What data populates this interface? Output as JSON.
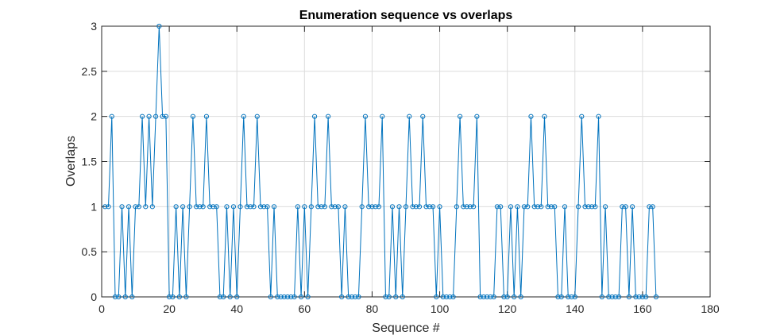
{
  "chart_data": {
    "type": "line",
    "title": "Enumeration sequence vs overlaps",
    "xlabel": "Sequence #",
    "ylabel": "Overlaps",
    "xlim": [
      0,
      180
    ],
    "ylim": [
      0,
      3
    ],
    "xticks": [
      0,
      20,
      40,
      60,
      80,
      100,
      120,
      140,
      160,
      180
    ],
    "yticks": [
      0,
      0.5,
      1,
      1.5,
      2,
      2.5,
      3
    ],
    "xtick_labels": [
      "0",
      "20",
      "40",
      "60",
      "80",
      "100",
      "120",
      "140",
      "160",
      "180"
    ],
    "ytick_labels": [
      "0",
      "0.5",
      "1",
      "1.5",
      "2",
      "2.5",
      "3"
    ],
    "grid": true,
    "marker": "circle",
    "color": "#0072BD",
    "series": [
      {
        "x": [
          1,
          2,
          3,
          4,
          5,
          6,
          7,
          8,
          9,
          10,
          11,
          12,
          13,
          14,
          15,
          16,
          17,
          18,
          19,
          20,
          21,
          22,
          23,
          24,
          25,
          26,
          27,
          28,
          29,
          30,
          31,
          32,
          33,
          34,
          35,
          36,
          37,
          38,
          39,
          40,
          41,
          42,
          43,
          44,
          45,
          46,
          47,
          48,
          49,
          50,
          51,
          52,
          53,
          54,
          55,
          56,
          57,
          58,
          59,
          60,
          61,
          62,
          63,
          64,
          65,
          66,
          67,
          68,
          69,
          70,
          71,
          72,
          73,
          74,
          75,
          76,
          77,
          78,
          79,
          80,
          81,
          82,
          83,
          84,
          85,
          86,
          87,
          88,
          89,
          90,
          91,
          92,
          93,
          94,
          95,
          96,
          97,
          98,
          99,
          100,
          101,
          102,
          103,
          104,
          105,
          106,
          107,
          108,
          109,
          110,
          111,
          112,
          113,
          114,
          115,
          116,
          117,
          118,
          119,
          120,
          121,
          122,
          123,
          124,
          125,
          126,
          127,
          128,
          129,
          130,
          131,
          132,
          133,
          134,
          135,
          136,
          137,
          138,
          139,
          140,
          141,
          142,
          143,
          144,
          145,
          146,
          147,
          148,
          149,
          150,
          151,
          152,
          153,
          154,
          155,
          156,
          157,
          158,
          159,
          160,
          161,
          162,
          163,
          164
        ],
        "y": [
          1,
          1,
          2,
          0,
          0,
          1,
          0,
          1,
          0,
          1,
          1,
          2,
          1,
          2,
          1,
          2,
          3,
          2,
          2,
          0,
          0,
          1,
          0,
          1,
          0,
          1,
          2,
          1,
          1,
          1,
          2,
          1,
          1,
          1,
          0,
          0,
          1,
          0,
          1,
          0,
          1,
          2,
          1,
          1,
          1,
          2,
          1,
          1,
          1,
          0,
          1,
          0,
          0,
          0,
          0,
          0,
          0,
          1,
          0,
          1,
          0,
          1,
          2,
          1,
          1,
          1,
          2,
          1,
          1,
          1,
          0,
          1,
          0,
          0,
          0,
          0,
          1,
          2,
          1,
          1,
          1,
          1,
          2,
          0,
          0,
          1,
          0,
          1,
          0,
          1,
          2,
          1,
          1,
          1,
          2,
          1,
          1,
          1,
          0,
          1,
          0,
          0,
          0,
          0,
          1,
          2,
          1,
          1,
          1,
          1,
          2,
          0,
          0,
          0,
          0,
          0,
          1,
          1,
          0,
          0,
          1,
          0,
          1,
          0,
          1,
          1,
          2,
          1,
          1,
          1,
          2,
          1,
          1,
          1,
          0,
          0,
          1,
          0,
          0,
          0,
          1,
          2,
          1,
          1,
          1,
          1,
          2,
          0,
          1,
          0,
          0,
          0,
          0,
          1,
          1,
          0,
          1,
          0,
          0,
          0,
          0,
          1,
          1,
          0
        ]
      }
    ]
  }
}
